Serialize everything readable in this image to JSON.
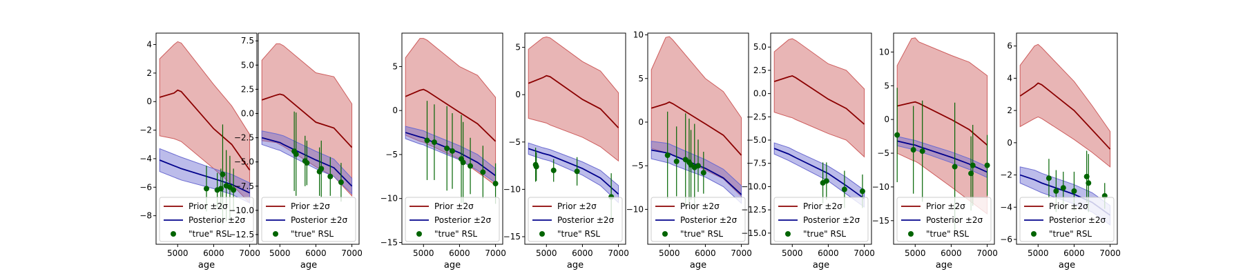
{
  "chart_data": [
    {
      "type": "line",
      "xlabel": "age",
      "xticks": [
        5000,
        6000,
        7000
      ],
      "xlim": [
        4400,
        7200
      ],
      "ylim": [
        -10,
        4.8
      ],
      "yticks": [
        -8,
        -6,
        -4,
        -2,
        0,
        2,
        4
      ],
      "x": [
        4500,
        4900,
        5000,
        5100,
        6000,
        6500,
        7000
      ],
      "prior_mean": [
        0.3,
        0.6,
        0.8,
        0.7,
        -1.9,
        -3.0,
        -4.8
      ],
      "prior_upper": [
        3.0,
        4.0,
        4.2,
        4.1,
        1.2,
        -0.3,
        -2.3
      ],
      "prior_lower": [
        -2.4,
        -2.6,
        -2.7,
        -2.8,
        -4.7,
        -5.8,
        -7.1
      ],
      "posterior_mean": [
        -4.1,
        -4.5,
        -4.6,
        -4.7,
        -5.4,
        -5.8,
        -6.4
      ],
      "posterior_upper": [
        -3.3,
        -3.7,
        -3.8,
        -3.9,
        -4.7,
        -5.1,
        -5.7
      ],
      "posterior_lower": [
        -4.9,
        -5.3,
        -5.4,
        -5.5,
        -6.1,
        -6.5,
        -7.1
      ],
      "observations": [
        {
          "x": 5800,
          "y": -6.1,
          "err": 1.6
        },
        {
          "x": 6100,
          "y": -6.2,
          "err": 1.2
        },
        {
          "x": 6200,
          "y": -6.1,
          "err": 1.4
        },
        {
          "x": 6250,
          "y": -5.1,
          "err": 3.5
        },
        {
          "x": 6350,
          "y": -5.9,
          "err": 2.5
        },
        {
          "x": 6450,
          "y": -6.0,
          "err": 2.2
        },
        {
          "x": 6550,
          "y": -6.2,
          "err": 1.5
        }
      ]
    },
    {
      "type": "line",
      "xlabel": "age",
      "xticks": [
        5000,
        6000,
        7000
      ],
      "xlim": [
        4400,
        7200
      ],
      "ylim": [
        -13.5,
        8.3
      ],
      "yticks": [
        -12.5,
        -10.0,
        -7.5,
        -5.0,
        -2.5,
        0.0,
        2.5,
        5.0,
        7.5
      ],
      "x": [
        4500,
        4900,
        5000,
        5100,
        6000,
        6500,
        7000
      ],
      "prior_mean": [
        1.4,
        1.9,
        2.0,
        1.9,
        -0.9,
        -1.5,
        -3.5
      ],
      "prior_upper": [
        5.5,
        7.2,
        7.2,
        7.0,
        4.2,
        3.8,
        1.0
      ],
      "prior_lower": [
        -2.8,
        -3.0,
        -3.2,
        -3.4,
        -5.5,
        -6.5,
        -8.5
      ],
      "posterior_mean": [
        -2.5,
        -2.9,
        -3.0,
        -3.2,
        -4.8,
        -5.6,
        -7.5
      ],
      "posterior_upper": [
        -1.8,
        -2.1,
        -2.2,
        -2.3,
        -3.9,
        -4.7,
        -6.7
      ],
      "posterior_lower": [
        -3.2,
        -3.7,
        -3.8,
        -4.0,
        -5.7,
        -6.5,
        -8.3
      ],
      "observations": [
        {
          "x": 5400,
          "y": -3.9,
          "err": 4.1
        },
        {
          "x": 5450,
          "y": -4.2,
          "err": 4.3
        },
        {
          "x": 5700,
          "y": -4.9,
          "err": 2.6
        },
        {
          "x": 5750,
          "y": -5.1,
          "err": 2.3
        },
        {
          "x": 6100,
          "y": -6.0,
          "err": 2.5
        },
        {
          "x": 6150,
          "y": -5.7,
          "err": 2.9
        },
        {
          "x": 6400,
          "y": -6.5,
          "err": 2.0
        },
        {
          "x": 6700,
          "y": -7.1,
          "err": 2.0
        }
      ]
    },
    {
      "type": "line",
      "xlabel": "age",
      "xticks": [
        5000,
        6000,
        7000
      ],
      "xlim": [
        4400,
        7200
      ],
      "ylim": [
        -15.2,
        8.8
      ],
      "yticks": [
        -15,
        -10,
        -5,
        0,
        5
      ],
      "x": [
        4500,
        4900,
        5000,
        5100,
        6000,
        6500,
        7000
      ],
      "prior_mean": [
        1.6,
        2.3,
        2.4,
        2.2,
        -0.2,
        -1.5,
        -3.5
      ],
      "prior_upper": [
        6.0,
        8.2,
        8.2,
        8.0,
        5.0,
        4.0,
        1.5
      ],
      "prior_lower": [
        -2.8,
        -3.5,
        -3.6,
        -3.8,
        -5.5,
        -7.0,
        -8.5
      ],
      "posterior_mean": [
        -2.5,
        -3.0,
        -3.1,
        -3.3,
        -4.8,
        -5.9,
        -7.4
      ],
      "posterior_upper": [
        -1.8,
        -2.2,
        -2.3,
        -2.5,
        -4.0,
        -5.0,
        -6.6
      ],
      "posterior_lower": [
        -3.2,
        -3.8,
        -3.9,
        -4.1,
        -5.6,
        -6.8,
        -8.2
      ],
      "observations": [
        {
          "x": 5100,
          "y": -3.4,
          "err": 4.5
        },
        {
          "x": 5300,
          "y": -3.6,
          "err": 4.3
        },
        {
          "x": 5650,
          "y": -4.3,
          "err": 4.8
        },
        {
          "x": 5800,
          "y": -4.6,
          "err": 4.3
        },
        {
          "x": 6050,
          "y": -5.5,
          "err": 5.0
        },
        {
          "x": 6100,
          "y": -5.9,
          "err": 4.6
        },
        {
          "x": 6300,
          "y": -6.3,
          "err": 3.2
        },
        {
          "x": 6650,
          "y": -7.0,
          "err": 3.0
        },
        {
          "x": 7000,
          "y": -8.3,
          "err": 2.3
        }
      ]
    },
    {
      "type": "line",
      "xlabel": "age",
      "xticks": [
        5000,
        6000,
        7000
      ],
      "xlim": [
        4400,
        7200
      ],
      "ylim": [
        -15.8,
        6.5
      ],
      "yticks": [
        -15,
        -10,
        -5,
        0,
        5
      ],
      "x": [
        4500,
        4900,
        5000,
        5100,
        6000,
        6500,
        7000
      ],
      "prior_mean": [
        1.2,
        1.8,
        2.0,
        1.9,
        -0.5,
        -1.5,
        -3.5
      ],
      "prior_upper": [
        4.8,
        6.0,
        6.1,
        6.0,
        3.5,
        2.5,
        0.2
      ],
      "prior_lower": [
        -2.5,
        -2.9,
        -3.0,
        -3.2,
        -4.5,
        -5.5,
        -7.0
      ],
      "posterior_mean": [
        -5.7,
        -6.2,
        -6.3,
        -6.4,
        -7.8,
        -8.8,
        -10.5
      ],
      "posterior_upper": [
        -5.1,
        -5.6,
        -5.7,
        -5.8,
        -7.1,
        -8.0,
        -9.6
      ],
      "posterior_lower": [
        -6.3,
        -6.8,
        -6.9,
        -7.0,
        -8.5,
        -9.6,
        -11.4
      ],
      "observations": [
        {
          "x": 4700,
          "y": -7.4,
          "err": 1.8
        },
        {
          "x": 4720,
          "y": -7.6,
          "err": 1.5
        },
        {
          "x": 5200,
          "y": -8.0,
          "err": 1.2
        },
        {
          "x": 5850,
          "y": -8.1,
          "err": 1.5
        },
        {
          "x": 6800,
          "y": -10.8,
          "err": 2.5
        }
      ]
    },
    {
      "type": "line",
      "xlabel": "age",
      "xticks": [
        5000,
        6000,
        7000
      ],
      "xlim": [
        4400,
        7200
      ],
      "ylim": [
        -14.0,
        10.2
      ],
      "yticks": [
        -10,
        -5,
        0,
        5,
        10
      ],
      "x": [
        4500,
        4900,
        5000,
        5100,
        6000,
        6500,
        7000
      ],
      "prior_mean": [
        1.6,
        2.1,
        2.3,
        2.1,
        -0.2,
        -1.5,
        -3.8
      ],
      "prior_upper": [
        6.0,
        9.7,
        9.8,
        9.4,
        5.0,
        3.5,
        0.5
      ],
      "prior_lower": [
        -3.0,
        -3.5,
        -3.6,
        -3.8,
        -5.5,
        -6.5,
        -8.5
      ],
      "posterior_mean": [
        -3.2,
        -3.5,
        -3.6,
        -3.8,
        -5.3,
        -6.4,
        -8.3
      ],
      "posterior_upper": [
        -2.2,
        -2.4,
        -2.5,
        -2.7,
        -4.3,
        -5.4,
        -7.3
      ],
      "posterior_lower": [
        -4.2,
        -4.6,
        -4.7,
        -4.9,
        -6.3,
        -7.4,
        -9.3
      ],
      "observations": [
        {
          "x": 4950,
          "y": -3.8,
          "err": 5.0
        },
        {
          "x": 5200,
          "y": -4.5,
          "err": 4.0
        },
        {
          "x": 5450,
          "y": -4.3,
          "err": 5.3
        },
        {
          "x": 5550,
          "y": -4.6,
          "err": 5.0
        },
        {
          "x": 5600,
          "y": -4.9,
          "err": 4.0
        },
        {
          "x": 5700,
          "y": -5.2,
          "err": 5.0
        },
        {
          "x": 5800,
          "y": -5.0,
          "err": 3.0
        },
        {
          "x": 5950,
          "y": -5.8,
          "err": 2.4
        }
      ]
    },
    {
      "type": "line",
      "xlabel": "age",
      "xticks": [
        5000,
        6000,
        7000
      ],
      "xlim": [
        4400,
        7200
      ],
      "ylim": [
        -16.2,
        6.5
      ],
      "yticks": [
        -15.0,
        -12.5,
        -10.0,
        -7.5,
        -5.0,
        -2.5,
        0.0,
        2.5,
        5.0
      ],
      "x": [
        4500,
        4900,
        5000,
        5100,
        6000,
        6500,
        7000
      ],
      "prior_mean": [
        1.3,
        1.8,
        1.9,
        1.7,
        -0.6,
        -1.6,
        -3.3
      ],
      "prior_upper": [
        4.5,
        5.8,
        5.9,
        5.7,
        3.2,
        2.5,
        0.5
      ],
      "prior_lower": [
        -2.0,
        -2.5,
        -2.6,
        -2.8,
        -4.3,
        -5.0,
        -6.8
      ],
      "posterior_mean": [
        -5.9,
        -6.5,
        -6.7,
        -6.9,
        -8.6,
        -9.9,
        -11.3
      ],
      "posterior_upper": [
        -5.3,
        -5.8,
        -6.0,
        -6.2,
        -7.8,
        -9.0,
        -10.4
      ],
      "posterior_lower": [
        -6.5,
        -7.2,
        -7.4,
        -7.6,
        -9.4,
        -10.8,
        -12.2
      ],
      "observations": [
        {
          "x": 5850,
          "y": -9.6,
          "err": 2.2
        },
        {
          "x": 5950,
          "y": -9.4,
          "err": 2.0
        },
        {
          "x": 6450,
          "y": -10.3,
          "err": 2.0
        },
        {
          "x": 6950,
          "y": -10.5,
          "err": 1.8
        }
      ]
    },
    {
      "type": "line",
      "xlabel": "age",
      "xticks": [
        5000,
        6000,
        7000
      ],
      "xlim": [
        4400,
        7200
      ],
      "ylim": [
        -18.5,
        12.8
      ],
      "yticks": [
        -15,
        -10,
        -5,
        0,
        5,
        10
      ],
      "x": [
        4500,
        4900,
        5000,
        5100,
        6000,
        6500,
        7000
      ],
      "prior_mean": [
        2.0,
        2.5,
        2.6,
        2.4,
        0.0,
        -1.5,
        -3.8
      ],
      "prior_upper": [
        8.0,
        12.0,
        12.1,
        11.5,
        9.5,
        8.5,
        6.5
      ],
      "prior_lower": [
        -5.0,
        -6.0,
        -6.2,
        -6.5,
        -10.0,
        -12.0,
        -14.0
      ],
      "posterior_mean": [
        -3.2,
        -3.7,
        -3.8,
        -4.0,
        -5.6,
        -6.6,
        -7.8
      ],
      "posterior_upper": [
        -2.5,
        -3.0,
        -3.1,
        -3.3,
        -4.8,
        -5.8,
        -7.0
      ],
      "posterior_lower": [
        -3.9,
        -4.4,
        -4.5,
        -4.7,
        -6.4,
        -7.4,
        -8.6
      ],
      "observations": [
        {
          "x": 4500,
          "y": -2.3,
          "err": 7.0
        },
        {
          "x": 4950,
          "y": -4.5,
          "err": 6.5
        },
        {
          "x": 5200,
          "y": -4.7,
          "err": 7.5
        },
        {
          "x": 6100,
          "y": -7.0,
          "err": 9.5
        },
        {
          "x": 6550,
          "y": -8.0,
          "err": 5.5
        },
        {
          "x": 6600,
          "y": -6.8,
          "err": 6.0
        },
        {
          "x": 7000,
          "y": -6.8,
          "err": 4.5
        }
      ]
    },
    {
      "type": "line",
      "xlabel": "age",
      "xticks": [
        5000,
        6000,
        7000
      ],
      "xlim": [
        4400,
        7200
      ],
      "ylim": [
        -6.3,
        6.8
      ],
      "yticks": [
        -6,
        -4,
        -2,
        0,
        2,
        4,
        6
      ],
      "x": [
        4500,
        4900,
        5000,
        5100,
        6000,
        6500,
        7000
      ],
      "prior_mean": [
        2.9,
        3.5,
        3.7,
        3.6,
        2.0,
        0.8,
        -0.4
      ],
      "prior_upper": [
        4.8,
        6.0,
        6.1,
        5.9,
        3.8,
        2.3,
        0.7
      ],
      "prior_lower": [
        1.0,
        1.5,
        1.6,
        1.5,
        0.2,
        -0.6,
        -1.5
      ],
      "posterior_mean": [
        -2.0,
        -2.3,
        -2.4,
        -2.5,
        -3.2,
        -3.7,
        -4.5
      ],
      "posterior_upper": [
        -1.5,
        -1.7,
        -1.8,
        -1.9,
        -2.6,
        -3.1,
        -3.9
      ],
      "posterior_lower": [
        -2.5,
        -2.9,
        -3.0,
        -3.1,
        -3.8,
        -4.3,
        -5.1
      ],
      "observations": [
        {
          "x": 5300,
          "y": -2.2,
          "err": 1.2
        },
        {
          "x": 5500,
          "y": -3.0,
          "err": 1.3
        },
        {
          "x": 5700,
          "y": -2.8,
          "err": 1.0
        },
        {
          "x": 6000,
          "y": -3.0,
          "err": 1.2
        },
        {
          "x": 6350,
          "y": -2.1,
          "err": 1.6
        },
        {
          "x": 6400,
          "y": -2.5,
          "err": 1.8
        },
        {
          "x": 6850,
          "y": -3.3,
          "err": 0.8
        }
      ]
    }
  ],
  "legend": [
    {
      "label": "Prior ±2σ",
      "kind": "line",
      "color": "#8b0000"
    },
    {
      "label": "Posterior ±2σ",
      "kind": "line",
      "color": "#00008b"
    },
    {
      "label": "\"true\" RSL",
      "kind": "marker",
      "color": "#006400"
    }
  ],
  "colors": {
    "prior_line": "#8b0000",
    "prior_band": "#cd5c5c",
    "posterior_line": "#00008b",
    "posterior_band": "#6a6ad0",
    "observation": "#006400"
  }
}
